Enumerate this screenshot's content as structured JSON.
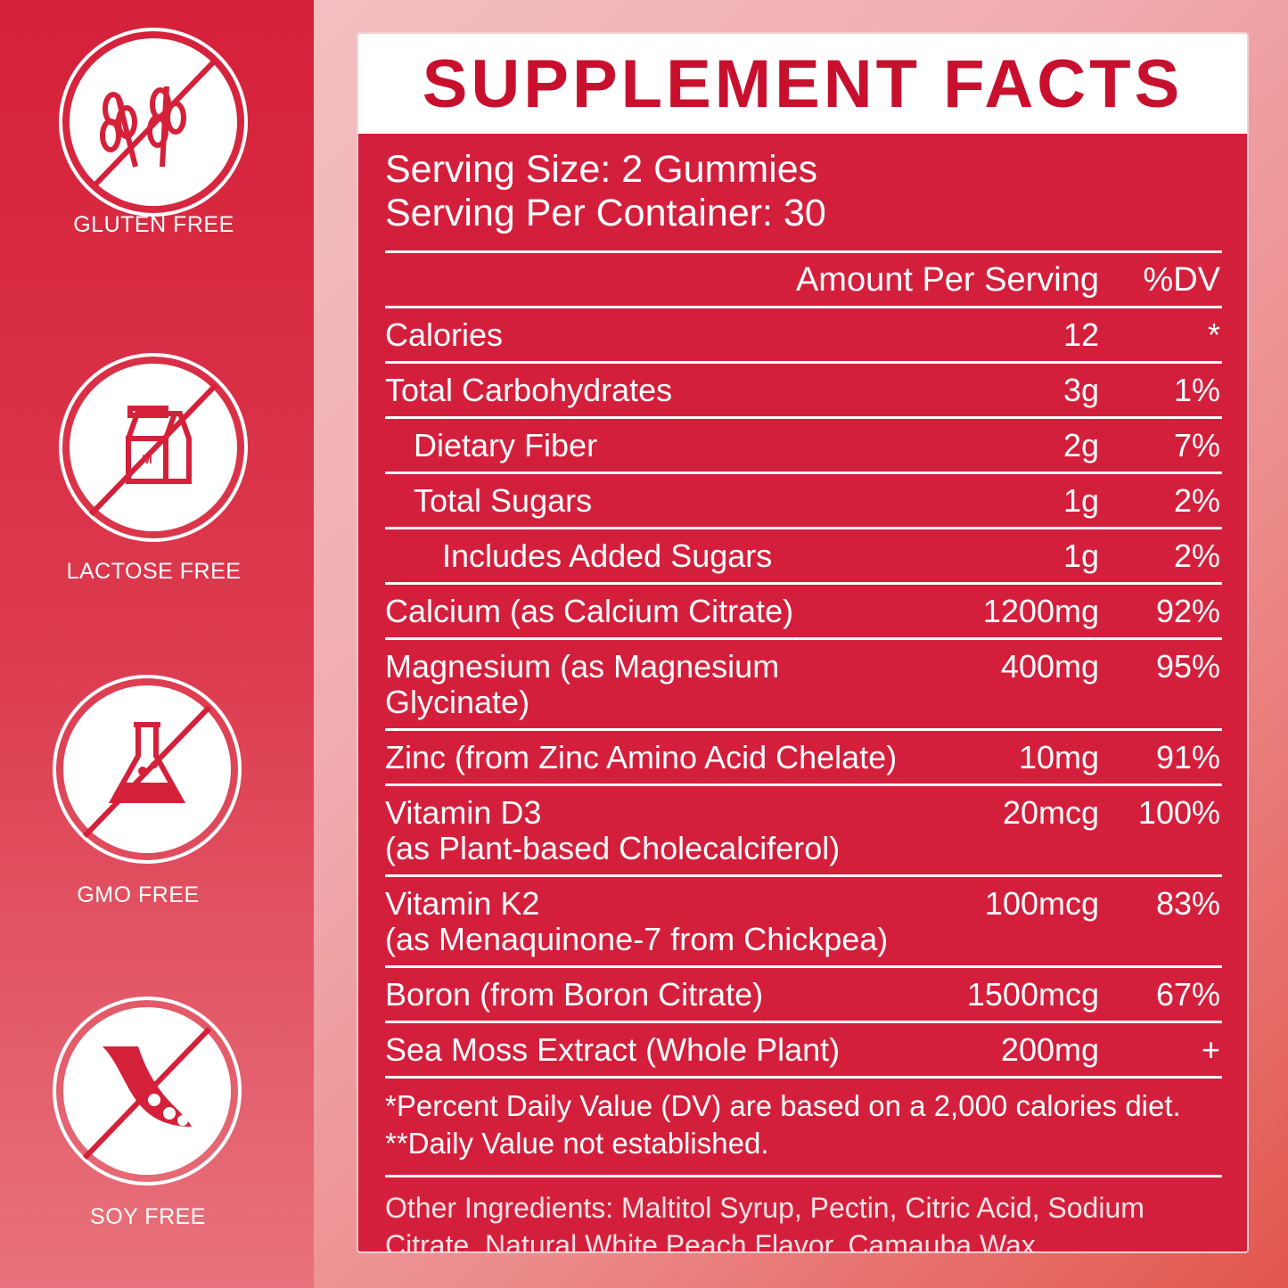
{
  "badges": [
    {
      "label": "GLUTEN FREE"
    },
    {
      "label": "LACTOSE FREE"
    },
    {
      "label": "GMO FREE"
    },
    {
      "label": "SOY FREE"
    }
  ],
  "panel": {
    "title": "SUPPLEMENT FACTS",
    "serving_size": "Serving Size: 2 Gummies",
    "servings_per_container": "Serving Per Container: 30",
    "header": {
      "amount": "Amount Per Serving",
      "dv": "%DV"
    },
    "rows": [
      {
        "name": "Calories",
        "amount": "12",
        "dv": "*"
      },
      {
        "name": "Total Carbohydrates",
        "amount": "3g",
        "dv": "1%",
        "subrows": [
          {
            "name": "Dietary Fiber",
            "amount": "2g",
            "dv": "7%"
          },
          {
            "name": "Total Sugars",
            "amount": "1g",
            "dv": "2%",
            "subrows": [
              {
                "name": "Includes Added Sugars",
                "amount": "1g",
                "dv": "2%"
              }
            ]
          }
        ]
      },
      {
        "name": "Calcium (as Calcium Citrate)",
        "amount": "1200mg",
        "dv": "92%"
      },
      {
        "name": "Magnesium (as Magnesium Glycinate)",
        "amount": "400mg",
        "dv": "95%"
      },
      {
        "name": "Zinc (from Zinc Amino Acid Chelate)",
        "amount": "10mg",
        "dv": "91%"
      },
      {
        "name": "Vitamin D3",
        "note": "(as Plant-based Cholecalciferol)",
        "amount": "20mcg",
        "dv": "100%"
      },
      {
        "name": "Vitamin K2",
        "note": "(as Menaquinone-7 from Chickpea)",
        "amount": "100mcg",
        "dv": "83%"
      },
      {
        "name": "Boron (from Boron Citrate)",
        "amount": "1500mcg",
        "dv": "67%"
      },
      {
        "name": "Sea Moss Extract (Whole Plant)",
        "amount": "200mg",
        "dv": "+"
      }
    ],
    "footnotes": [
      "*Percent Daily Value (DV) are based on a 2,000 calories diet.",
      "**Daily Value not established."
    ],
    "other_ingredients": "Other Ingredients: Maltitol Syrup, Pectin, Citric Acid, Sodium Citrate, Natural White Peach Flavor, Camauba Wax."
  }
}
